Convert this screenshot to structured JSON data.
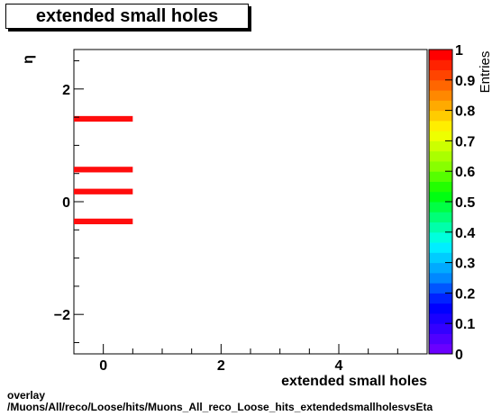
{
  "chart_data": {
    "type": "heatmap",
    "title": "extended small holes",
    "xlabel": "extended small holes",
    "ylabel": "η",
    "zlabel": "Entries",
    "xlim": [
      -0.5,
      5.5
    ],
    "ylim": [
      -2.7,
      2.7
    ],
    "zlim": [
      0,
      1
    ],
    "x_ticks": [
      "0",
      "2",
      "4"
    ],
    "x_tick_values": [
      0,
      2,
      4
    ],
    "y_ticks": [
      "2",
      "0",
      "−2"
    ],
    "y_tick_values": [
      2,
      0,
      -2
    ],
    "z_ticks": [
      "0",
      "0.1",
      "0.2",
      "0.3",
      "0.4",
      "0.5",
      "0.6",
      "0.7",
      "0.8",
      "0.9",
      "1"
    ],
    "cells": [
      {
        "x0": -0.5,
        "x1": 0.5,
        "y0": 1.42,
        "y1": 1.52,
        "z": 1
      },
      {
        "x0": -0.5,
        "x1": 0.5,
        "y0": 0.52,
        "y1": 0.62,
        "z": 1
      },
      {
        "x0": -0.5,
        "x1": 0.5,
        "y0": 0.13,
        "y1": 0.23,
        "z": 1
      },
      {
        "x0": -0.5,
        "x1": 0.5,
        "y0": -0.4,
        "y1": -0.3,
        "z": 1
      }
    ],
    "cell_color": "#ff0d0d",
    "palette": [
      "#6a00ff",
      "#4f00ff",
      "#3300ff",
      "#1a00ff",
      "#0000ff",
      "#0022ff",
      "#0055ff",
      "#0088ff",
      "#00aaff",
      "#00ccff",
      "#00eeff",
      "#00ffdd",
      "#00ffaa",
      "#00ff77",
      "#00ff44",
      "#00ff11",
      "#22ff00",
      "#55ff00",
      "#88ff00",
      "#aaff00",
      "#ccff00",
      "#eeff00",
      "#ffee00",
      "#ffcc00",
      "#ffaa00",
      "#ff8800",
      "#ff6600",
      "#ff4400",
      "#ff2200",
      "#ff0000"
    ]
  },
  "footer": {
    "line1": "overlay",
    "line2": "/Muons/All/reco/Loose/hits/Muons_All_reco_Loose_hits_extendedsmallholesvsEta"
  }
}
